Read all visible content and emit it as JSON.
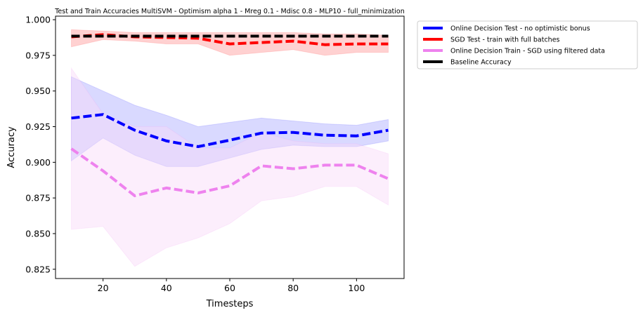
{
  "chart_data": {
    "type": "line",
    "title": "Test and Train Accuracies MultiSVM - Optimism alpha 1 - Mreg 0.1 - Mdisc 0.8 - MLP10 - full_minimization",
    "xlabel": "Timesteps",
    "ylabel": "Accuracy",
    "xlim": [
      5,
      115
    ],
    "ylim": [
      0.8185,
      1.0025
    ],
    "xticks": [
      20,
      40,
      60,
      80,
      100
    ],
    "yticks": [
      0.825,
      0.85,
      0.875,
      0.9,
      0.925,
      0.95,
      0.975,
      1.0
    ],
    "xtick_labels": [
      "20",
      "40",
      "60",
      "80",
      "100"
    ],
    "ytick_labels": [
      "0.825",
      "0.850",
      "0.875",
      "0.900",
      "0.925",
      "0.950",
      "0.975",
      "1.000"
    ],
    "grid": false,
    "legend_position": "outside upper-right",
    "x": [
      10,
      20,
      30,
      40,
      50,
      60,
      70,
      80,
      90,
      100,
      110
    ],
    "series": [
      {
        "name": "Online Decision Test - no optimistic bonus",
        "color": "#0000ff",
        "fill": "#aaaaff",
        "values": [
          0.931,
          0.9335,
          0.9225,
          0.915,
          0.911,
          0.9155,
          0.9205,
          0.921,
          0.919,
          0.9185,
          0.9225
        ],
        "upper": [
          0.96,
          0.95,
          0.94,
          0.933,
          0.925,
          0.928,
          0.931,
          0.929,
          0.927,
          0.926,
          0.93
        ],
        "lower": [
          0.901,
          0.917,
          0.905,
          0.897,
          0.897,
          0.903,
          0.909,
          0.912,
          0.911,
          0.911,
          0.915
        ]
      },
      {
        "name": "SGD Test - train with full batches",
        "color": "#ff0000",
        "fill": "#ff9999",
        "values": [
          0.988,
          0.9895,
          0.988,
          0.9875,
          0.987,
          0.983,
          0.984,
          0.985,
          0.9825,
          0.983,
          0.983
        ],
        "upper": [
          0.993,
          0.992,
          0.991,
          0.991,
          0.991,
          0.991,
          0.991,
          0.991,
          0.99,
          0.99,
          0.989
        ],
        "lower": [
          0.981,
          0.986,
          0.985,
          0.983,
          0.983,
          0.975,
          0.977,
          0.979,
          0.975,
          0.977,
          0.977
        ]
      },
      {
        "name": "Online Decision Train - SGD using filtered data",
        "color": "#ee82ee",
        "fill": "#f9d9f9",
        "values": [
          0.9095,
          0.894,
          0.8765,
          0.882,
          0.8785,
          0.8835,
          0.8975,
          0.8955,
          0.898,
          0.898,
          0.8885
        ],
        "upper": [
          0.966,
          0.934,
          0.925,
          0.925,
          0.91,
          0.91,
          0.921,
          0.915,
          0.913,
          0.913,
          0.906
        ],
        "lower": [
          0.853,
          0.855,
          0.827,
          0.84,
          0.847,
          0.857,
          0.873,
          0.876,
          0.883,
          0.883,
          0.87
        ]
      },
      {
        "name": "Baseline Accuracy",
        "color": "#000000",
        "values": [
          0.9885,
          0.9885,
          0.9885,
          0.9885,
          0.9885,
          0.9885,
          0.9885,
          0.9885,
          0.9885,
          0.9885,
          0.9885
        ]
      }
    ]
  }
}
